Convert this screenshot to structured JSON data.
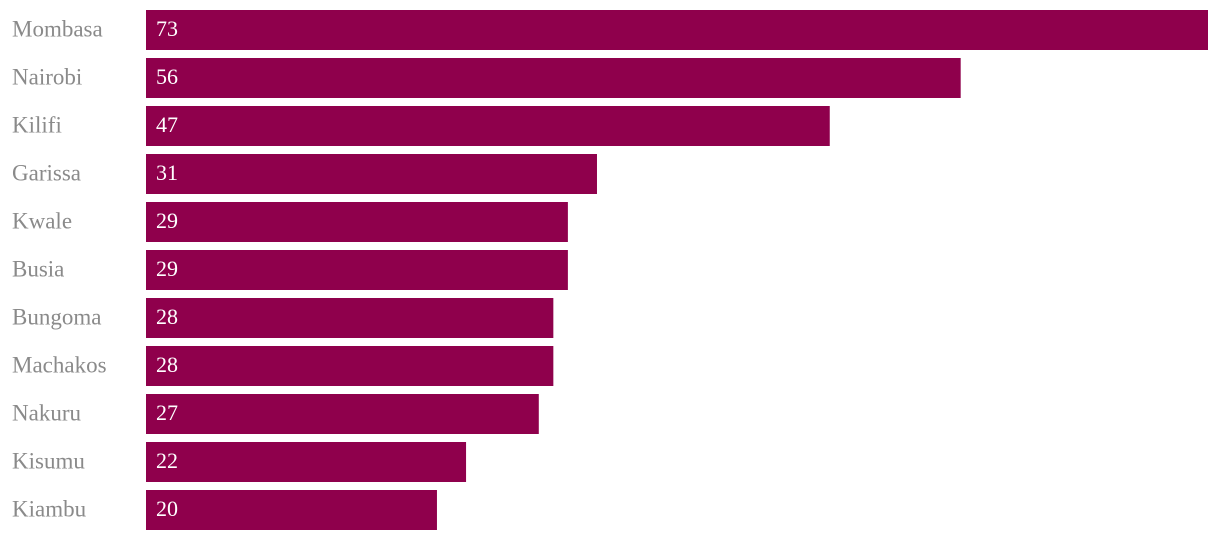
{
  "chart_data": {
    "type": "bar",
    "orientation": "horizontal",
    "categories": [
      "Mombasa",
      "Nairobi",
      "Kilifi",
      "Garissa",
      "Kwale",
      "Busia",
      "Bungoma",
      "Machakos",
      "Nakuru",
      "Kisumu",
      "Kiambu"
    ],
    "values": [
      73,
      56,
      47,
      31,
      29,
      29,
      28,
      28,
      27,
      22,
      20
    ],
    "color": "#8f004c"
  }
}
